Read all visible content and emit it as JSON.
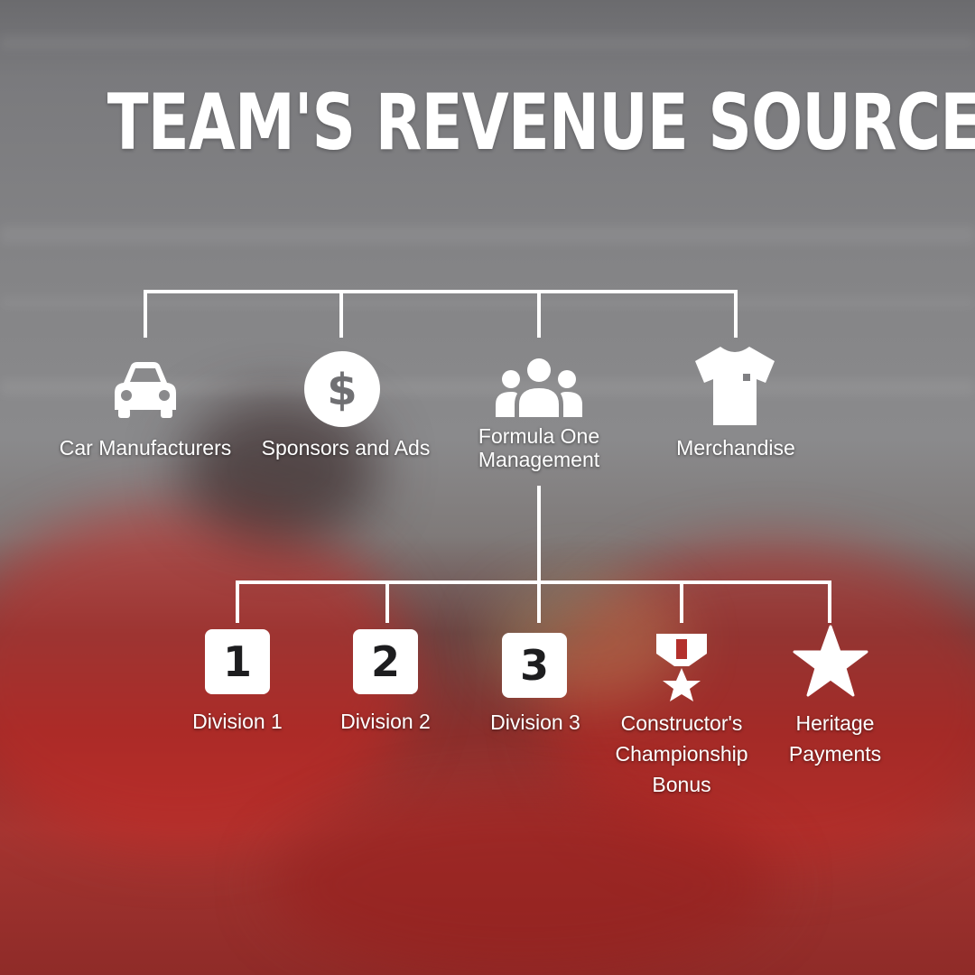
{
  "title": "TEAM'S REVENUE SOURCES",
  "colors": {
    "line": "#ffffff",
    "icon": "#ffffff",
    "number_text": "#1d1d1f",
    "accent_red": "#b3302c"
  },
  "top_nodes": [
    {
      "id": "car",
      "label": "Car Manufacturers",
      "icon": "car-icon"
    },
    {
      "id": "sponsors",
      "label": "Sponsors and Ads",
      "icon": "dollar-coin-icon"
    },
    {
      "id": "fom",
      "label_line1": "Formula One",
      "label_line2": "Management",
      "icon": "group-people-icon"
    },
    {
      "id": "merch",
      "label": "Merchandise",
      "icon": "tshirt-icon"
    }
  ],
  "bottom_nodes": [
    {
      "id": "div1",
      "label": "Division 1",
      "number": "1",
      "icon": "number-1-icon"
    },
    {
      "id": "div2",
      "label": "Division 2",
      "number": "2",
      "icon": "number-2-icon"
    },
    {
      "id": "div3",
      "label": "Division 3",
      "number": "3",
      "icon": "number-3-icon"
    },
    {
      "id": "ccb",
      "label_line1": "Constructor's",
      "label_line2": "Championship",
      "label_line3": "Bonus",
      "icon": "medal-icon"
    },
    {
      "id": "heritage",
      "label_line1": "Heritage",
      "label_line2": "Payments",
      "icon": "star-icon"
    }
  ]
}
